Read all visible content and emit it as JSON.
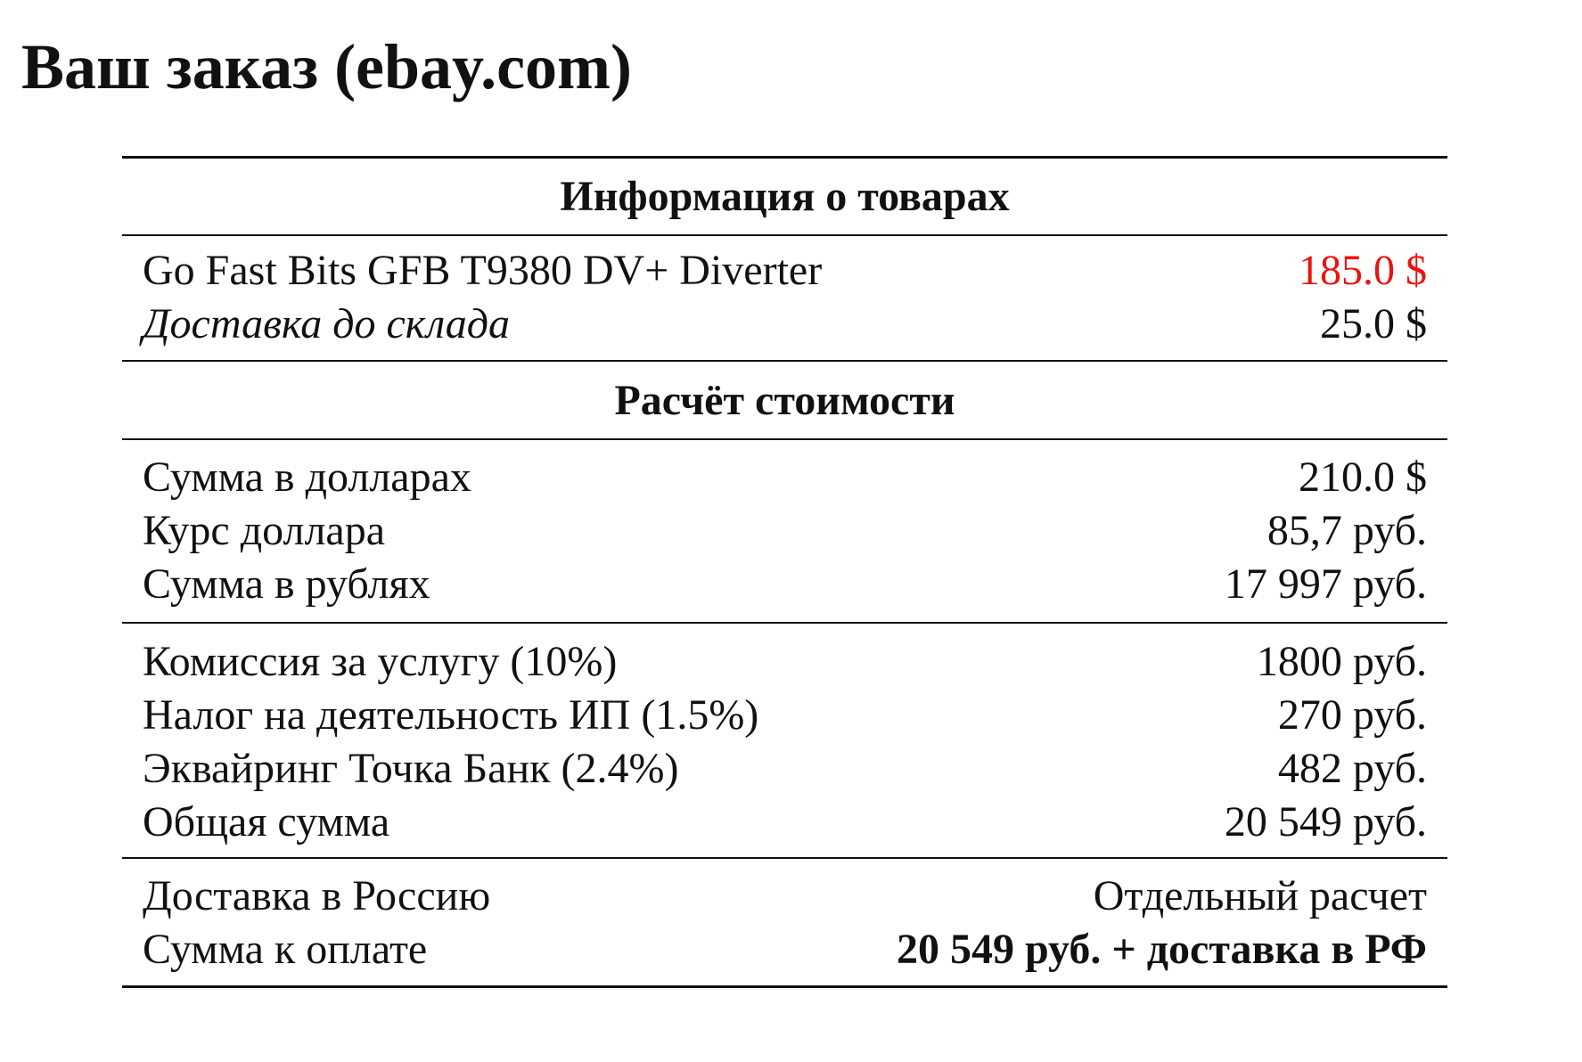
{
  "title": "Ваш заказ (ebay.com)",
  "goods": {
    "header": "Информация о товарах",
    "item": {
      "label": "Go Fast Bits GFB T9380 DV+ Diverter",
      "value": "185.0 $"
    },
    "shipping": {
      "label": "Доставка до склада",
      "value": "25.0 $"
    }
  },
  "calc": {
    "header": "Расчёт стоимости",
    "group1": [
      {
        "label": "Сумма в долларах",
        "value": "210.0 $"
      },
      {
        "label": "Курс доллара",
        "value": "85,7 руб."
      },
      {
        "label": "Сумма в рублях",
        "value": "17 997 руб."
      }
    ],
    "group2": [
      {
        "label": "Комиссия за услугу (10%)",
        "value": "1800 руб."
      },
      {
        "label": "Налог на деятельность ИП (1.5%)",
        "value": "270 руб."
      },
      {
        "label": "Эквайринг Точка Банк (2.4%)",
        "value": "482 руб."
      },
      {
        "label": "Общая сумма",
        "value": "20 549 руб."
      }
    ],
    "group3": [
      {
        "label": "Доставка в Россию",
        "value": "Отдельный расчет"
      },
      {
        "label": "Сумма к оплате",
        "value": "20 549 руб. + доставка в РФ"
      }
    ]
  },
  "colors": {
    "price_highlight": "#e8140f"
  }
}
